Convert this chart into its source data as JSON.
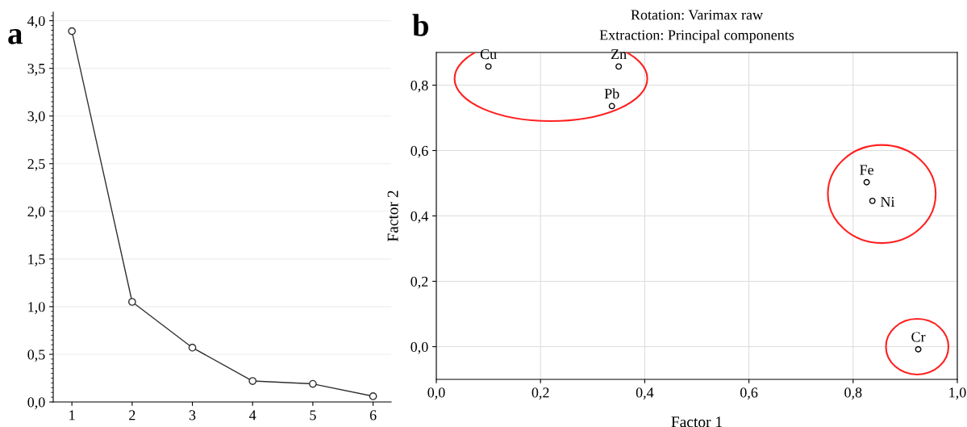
{
  "chart_data": [
    {
      "type": "line",
      "x": [
        1,
        2,
        3,
        4,
        5,
        6
      ],
      "values": [
        3.89,
        1.05,
        0.57,
        0.22,
        0.19,
        0.06
      ],
      "color": "#303030",
      "marker": "circle",
      "line_style": "solid",
      "grid": "y",
      "xlim": [
        0.69,
        6.3
      ],
      "xticks": [
        1,
        2,
        3,
        4,
        5,
        6
      ],
      "ylim": [
        0,
        4.09
      ],
      "yticks": [
        {
          "value": 0,
          "label": "0,0"
        },
        {
          "value": 0.5,
          "label": "0,5"
        },
        {
          "value": 1,
          "label": "1,0"
        },
        {
          "value": 1.5,
          "label": "1,5"
        },
        {
          "value": 2,
          "label": "2,0"
        },
        {
          "value": 2.5,
          "label": "2,5"
        },
        {
          "value": 3,
          "label": "3,0"
        },
        {
          "value": 3.5,
          "label": "3,5"
        },
        {
          "value": 4,
          "label": "4,0"
        }
      ],
      "annotations": [
        "a"
      ]
    },
    {
      "type": "scatter",
      "title": "Rotation: Varimax raw",
      "subtitle": "Extraction: Principal components",
      "xlabel": "Factor 1",
      "ylabel": "Factor 2",
      "marker": "circle",
      "grid": true,
      "series": [
        {
          "name": "Cu",
          "color": "#000000",
          "x": [
            0.1
          ],
          "values": [
            0.857
          ]
        },
        {
          "name": "Zn",
          "color": "#000000",
          "x": [
            0.35
          ],
          "values": [
            0.857
          ]
        },
        {
          "name": "Pb",
          "color": "#000000",
          "x": [
            0.337
          ],
          "values": [
            0.736
          ]
        },
        {
          "name": "Fe",
          "color": "#000000",
          "x": [
            0.826
          ],
          "values": [
            0.503
          ]
        },
        {
          "name": "Ni",
          "color": "#000000",
          "x": [
            0.837
          ],
          "values": [
            0.446
          ]
        },
        {
          "name": "Cr",
          "color": "#000000",
          "x": [
            0.925
          ],
          "values": [
            -0.008
          ]
        }
      ],
      "xlim": [
        0,
        1
      ],
      "ylim": [
        -0.1,
        0.9
      ],
      "xticks": [
        {
          "value": 0,
          "label": "0,0"
        },
        {
          "value": 0.2,
          "label": "0,2"
        },
        {
          "value": 0.4,
          "label": "0,4"
        },
        {
          "value": 0.6,
          "label": "0,6"
        },
        {
          "value": 0.8,
          "label": "0,8"
        },
        {
          "value": 1,
          "label": "1,0"
        }
      ],
      "yticks": [
        {
          "value": 0,
          "label": "0,0"
        },
        {
          "value": 0.2,
          "label": "0,2"
        },
        {
          "value": 0.4,
          "label": "0,4"
        },
        {
          "value": 0.6,
          "label": "0,6"
        },
        {
          "value": 0.8,
          "label": "0,8"
        }
      ],
      "annotations": [
        "b"
      ]
    }
  ]
}
